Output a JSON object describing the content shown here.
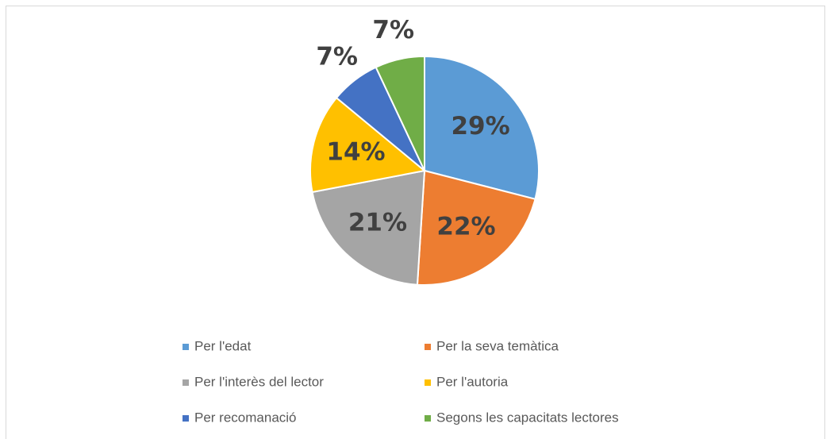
{
  "chart_data": {
    "type": "pie",
    "categories": [
      "Per l'edat",
      "Per la seva temàtica",
      "Per l'interès del lector",
      "Per l'autoria",
      "Per recomanació",
      "Segons les capacitats lectores"
    ],
    "values": [
      29,
      22,
      21,
      14,
      7,
      7
    ],
    "value_labels": [
      "29%",
      "22%",
      "21%",
      "14%",
      "7%",
      "7%"
    ],
    "colors": [
      "#5b9bd5",
      "#ed7d31",
      "#a5a5a5",
      "#ffc000",
      "#4472c4",
      "#70ad47"
    ],
    "legend": "bottom"
  }
}
